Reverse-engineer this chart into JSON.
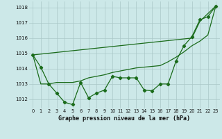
{
  "title": "Graphe pression niveau de la mer (hPa)",
  "bg_color": "#cce8e8",
  "grid_color": "#aac8c8",
  "line_color": "#1a6b1a",
  "x_labels": [
    "0",
    "1",
    "2",
    "3",
    "4",
    "5",
    "6",
    "7",
    "8",
    "9",
    "10",
    "11",
    "12",
    "13",
    "14",
    "15",
    "16",
    "17",
    "18",
    "19",
    "20",
    "21",
    "22",
    "23"
  ],
  "ylim": [
    1011.4,
    1018.4
  ],
  "yticks": [
    1012,
    1013,
    1014,
    1015,
    1016,
    1017,
    1018
  ],
  "series_jagged": [
    1014.9,
    1014.1,
    1013.0,
    1012.4,
    1011.8,
    1011.65,
    1013.1,
    1012.1,
    1012.4,
    1012.6,
    1013.5,
    1013.4,
    1013.4,
    1013.4,
    1012.6,
    1012.55,
    1013.0,
    1013.0,
    1014.5,
    1015.5,
    1016.1,
    1017.2,
    1017.4,
    1018.1
  ],
  "series_upper": [
    1014.9,
    null,
    null,
    null,
    null,
    null,
    null,
    null,
    null,
    null,
    null,
    null,
    null,
    null,
    null,
    null,
    null,
    null,
    null,
    null,
    1016.0,
    1017.1,
    null,
    1018.1
  ],
  "series_lower": [
    1014.9,
    1013.0,
    1013.0,
    1013.1,
    1013.1,
    1013.1,
    1013.2,
    1013.4,
    1013.5,
    1013.6,
    1013.75,
    1013.85,
    1013.95,
    1014.05,
    1014.1,
    1014.15,
    1014.2,
    1014.45,
    1014.75,
    1015.1,
    1015.5,
    1015.8,
    1016.2,
    1018.1
  ]
}
